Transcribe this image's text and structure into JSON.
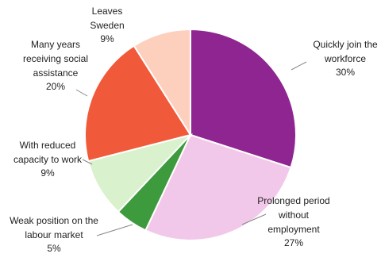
{
  "chart_data": {
    "type": "pie",
    "categories": [
      "Quickly join the workforce",
      "Prolonged period without employment",
      "Weak position on the labour market",
      "With reduced capacity to work",
      "Many years receiving social assistance",
      "Leaves Sweden"
    ],
    "values": [
      30,
      27,
      5,
      9,
      20,
      9
    ],
    "value_labels": [
      "30%",
      "27%",
      "5%",
      "9%",
      "20%",
      "9%"
    ],
    "colors": [
      "#8e2590",
      "#f2c8ea",
      "#3d9a3d",
      "#d9f1cc",
      "#f05a3b",
      "#fdd0bd"
    ]
  }
}
